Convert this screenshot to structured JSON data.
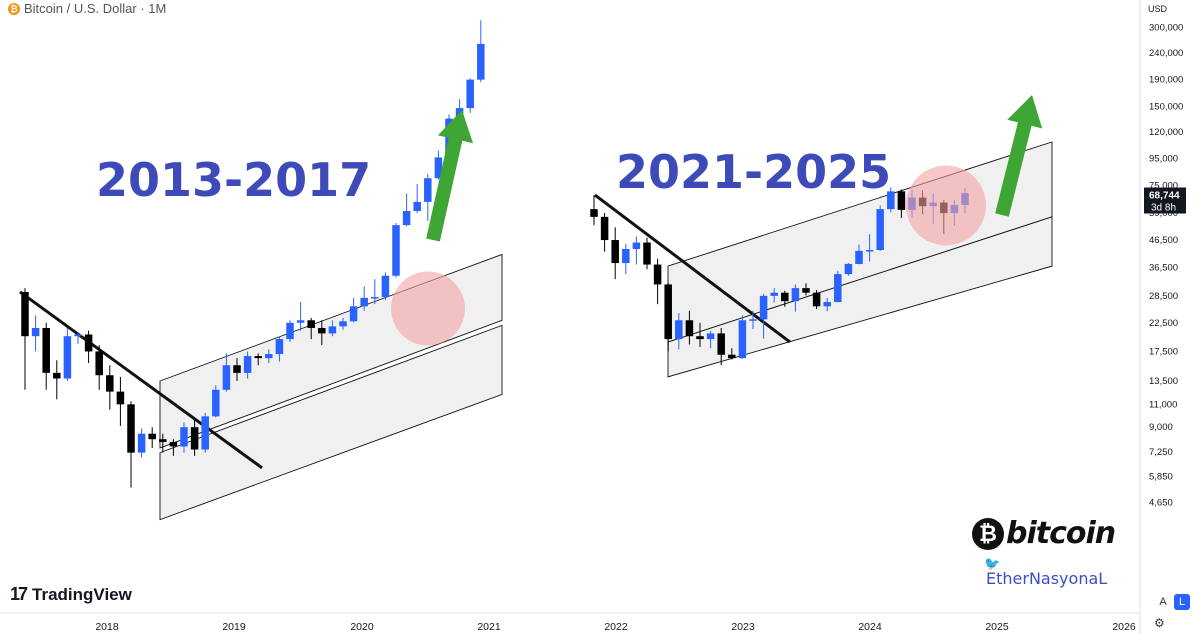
{
  "header": {
    "symbol_icon": "bitcoin-coin-icon",
    "coin_glyph": "₿",
    "title": "Bitcoin / U.S. Dollar · 1M"
  },
  "price_axis": {
    "currency": "USD",
    "labels": [
      "300,000",
      "240,000",
      "190,000",
      "150,000",
      "120,000",
      "95,000",
      "75,000",
      "59,000",
      "46,500",
      "36,500",
      "28,500",
      "22,500",
      "17,500",
      "13,500",
      "11,000",
      "9,000",
      "7,250",
      "5,850",
      "4,650"
    ],
    "current_price": "68,744",
    "countdown": "3d 8h",
    "scale_buttons": [
      "A",
      "L"
    ],
    "settings_icon": "gear-icon"
  },
  "time_axis": {
    "labels": [
      "2018",
      "2019",
      "2020",
      "2021",
      "2022",
      "2023",
      "2024",
      "2025",
      "2026"
    ]
  },
  "branding": {
    "tradingview": "TradingView",
    "tv_mark": "17",
    "bitcoin_logo_glyph": "₿",
    "bitcoin_logo_text": "bitcoin",
    "author": "EtherNasyonaL",
    "bird_icon": "twitter-bird-icon"
  },
  "chart_data": {
    "type": "candlestick",
    "interval": "1M",
    "y_scale": "log",
    "ylim": [
      4000,
      350000
    ],
    "colors": {
      "up": "#2962ff",
      "down": "#000000",
      "annotation_text": "#3d4ab8",
      "arrow": "#3fa535",
      "circle": "#f4a3a3",
      "channel_fill": "#f0f0f0"
    },
    "annotations": {
      "left_label": "2013-2017",
      "right_label": "2021-2025"
    },
    "panels": [
      {
        "name": "2013-2017",
        "candles": [
          [
            29500,
            20000,
            30500,
            12500
          ],
          [
            20000,
            21500,
            24000,
            17500
          ],
          [
            21500,
            14500,
            22500,
            12500
          ],
          [
            14500,
            13800,
            16200,
            11500
          ],
          [
            13800,
            20000,
            21500,
            13500
          ],
          [
            20000,
            20300,
            20700,
            18700
          ],
          [
            20300,
            17500,
            21000,
            15800
          ],
          [
            17500,
            14200,
            18500,
            12500
          ],
          [
            14200,
            12300,
            15500,
            10500
          ],
          [
            12300,
            11000,
            14000,
            9100
          ],
          [
            11000,
            7200,
            11300,
            5300
          ],
          [
            7200,
            8500,
            8900,
            6900
          ],
          [
            8500,
            8100,
            9000,
            7500
          ],
          [
            8100,
            7900,
            8500,
            7200
          ],
          [
            7900,
            7600,
            8100,
            7000
          ],
          [
            7600,
            9000,
            9400,
            7200
          ],
          [
            9000,
            7400,
            9600,
            7000
          ],
          [
            7400,
            9900,
            10200,
            7200
          ],
          [
            9900,
            12500,
            13000,
            9800
          ],
          [
            12500,
            15500,
            17200,
            12300
          ],
          [
            15500,
            14500,
            16500,
            13500
          ],
          [
            14500,
            16800,
            17500,
            13800
          ],
          [
            16800,
            16500,
            17200,
            15500
          ],
          [
            16500,
            17100,
            17800,
            15800
          ],
          [
            17100,
            19500,
            20000,
            16000
          ],
          [
            19500,
            22500,
            23000,
            19000
          ],
          [
            22500,
            23000,
            27000,
            21000
          ],
          [
            23000,
            21500,
            23500,
            19500
          ],
          [
            21500,
            20500,
            23000,
            18500
          ],
          [
            20500,
            21800,
            23000,
            20000
          ],
          [
            21800,
            22800,
            23500,
            21200
          ],
          [
            22800,
            26000,
            28000,
            22600
          ],
          [
            26000,
            28000,
            31000,
            25000
          ],
          [
            28000,
            28200,
            33000,
            26500
          ],
          [
            28200,
            34000,
            35000,
            27500
          ],
          [
            34000,
            53000,
            54000,
            33500
          ],
          [
            53000,
            60000,
            70000,
            52500
          ],
          [
            60000,
            65000,
            76000,
            59000
          ],
          [
            65000,
            80000,
            83000,
            55000
          ],
          [
            80000,
            96000,
            102000,
            79000
          ],
          [
            96000,
            135000,
            140000,
            94000
          ],
          [
            135000,
            148000,
            160000,
            118000
          ],
          [
            148000,
            190000,
            192000,
            142000
          ],
          [
            190000,
            260000,
            320000,
            186000
          ]
        ],
        "channel_bands": [
          [
            [
              7500,
              13500
            ],
            [
              23000,
              41000
            ]
          ],
          [
            [
              4000,
              7200
            ],
            [
              12000,
              22000
            ]
          ]
        ],
        "downtrend_line": [
          [
            29500,
            0
          ],
          [
            7200,
            1
          ]
        ]
      },
      {
        "name": "2021-2025",
        "candles": [
          [
            61000,
            57000,
            69000,
            53000
          ],
          [
            57000,
            46500,
            59000,
            42000
          ],
          [
            46500,
            38000,
            52000,
            33000
          ],
          [
            38000,
            43000,
            45000,
            34500
          ],
          [
            43000,
            45500,
            48000,
            37500
          ],
          [
            45500,
            37500,
            47500,
            36000
          ],
          [
            37500,
            31500,
            39500,
            26500
          ],
          [
            31500,
            19500,
            32000,
            17500
          ],
          [
            19500,
            23000,
            24500,
            17800
          ],
          [
            23000,
            20000,
            25000,
            18600
          ],
          [
            20000,
            19500,
            22500,
            18200
          ],
          [
            19500,
            20500,
            21000,
            18000
          ],
          [
            20500,
            17000,
            21500,
            15500
          ],
          [
            17000,
            16500,
            18000,
            16300
          ],
          [
            16500,
            23000,
            24000,
            16400
          ],
          [
            23000,
            23200,
            25000,
            21300
          ],
          [
            23200,
            28500,
            29000,
            19600
          ],
          [
            28500,
            29300,
            30500,
            26900
          ],
          [
            29300,
            27200,
            29800,
            25900
          ],
          [
            27200,
            30500,
            31500,
            24800
          ],
          [
            30500,
            29300,
            31800,
            28600
          ],
          [
            29300,
            26000,
            30000,
            25400
          ],
          [
            26000,
            27000,
            28000,
            24900
          ],
          [
            27000,
            34500,
            35500,
            26900
          ],
          [
            34500,
            37700,
            38000,
            34000
          ],
          [
            37700,
            42300,
            44700,
            37600
          ],
          [
            42300,
            42600,
            48900,
            38500
          ],
          [
            42600,
            61000,
            63000,
            42300
          ],
          [
            61000,
            71300,
            73800,
            59300
          ],
          [
            71300,
            60600,
            72500,
            56500
          ],
          [
            60600,
            67500,
            72000,
            56700
          ],
          [
            67500,
            62600,
            71900,
            58400
          ],
          [
            62600,
            64600,
            70000,
            53500
          ],
          [
            64600,
            58900,
            66000,
            49000
          ],
          [
            58900,
            63300,
            66000,
            52700
          ],
          [
            63300,
            70200,
            73500,
            58900
          ]
        ],
        "channel_bands": [
          [
            [
              19000,
              37000
            ],
            [
              57000,
              110000
            ]
          ],
          [
            [
              14000,
              19000
            ],
            [
              37000,
              57000
            ]
          ]
        ],
        "downtrend_line": [
          [
            69000,
            0
          ],
          [
            17500,
            1
          ]
        ]
      }
    ]
  }
}
